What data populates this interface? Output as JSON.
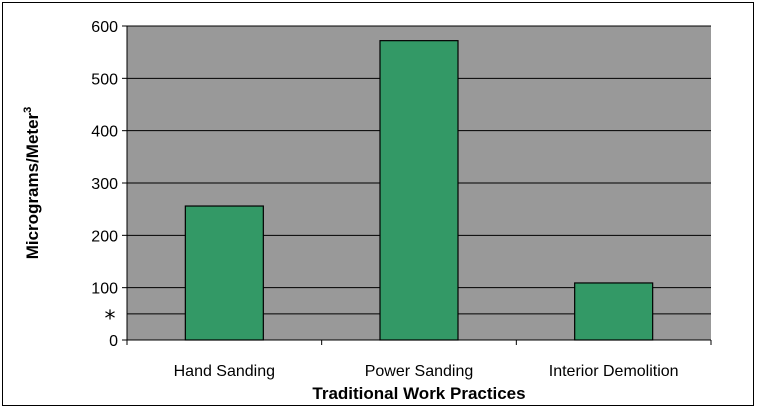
{
  "chart_data": {
    "type": "bar",
    "categories": [
      "Hand Sanding",
      "Power Sanding",
      "Interior Demolition"
    ],
    "values": [
      256,
      572,
      109
    ],
    "xlabel": "Traditional Work Practices",
    "ylabel": "Micrograms/Meter",
    "ylabel_superscript": "3",
    "ylim": [
      0,
      600
    ],
    "yticks": [
      0,
      100,
      200,
      300,
      400,
      500,
      600
    ],
    "reference_line": {
      "value": 50,
      "label": "*"
    },
    "grid": true,
    "legend": "none",
    "colors": {
      "plot_background": "#999999",
      "bar_fill": "#339966",
      "bar_stroke": "#000000",
      "gridline": "#000000"
    }
  }
}
